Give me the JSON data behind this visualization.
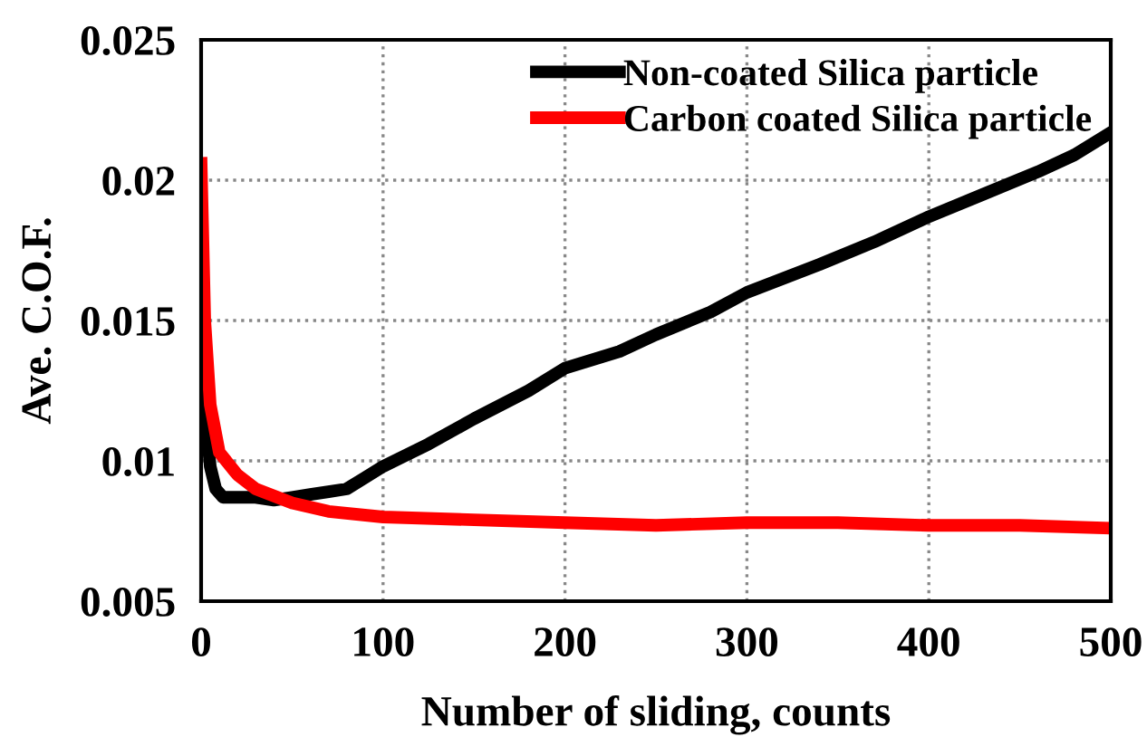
{
  "chart_data": {
    "type": "line",
    "xlabel": "Number of sliding, counts",
    "ylabel": "Ave. C.O.F.",
    "xlim": [
      0,
      500
    ],
    "ylim": [
      0.005,
      0.025
    ],
    "xticks": [
      0,
      100,
      200,
      300,
      400,
      500
    ],
    "yticks": [
      0.005,
      0.01,
      0.015,
      0.02,
      0.025
    ],
    "grid": true,
    "legend": "top right",
    "line_style": "solid",
    "marker": "none",
    "series": [
      {
        "name": "Non-coated Silica particle",
        "color": "#000000",
        "x": [
          0,
          2,
          5,
          8,
          12,
          20,
          30,
          40,
          50,
          60,
          70,
          80,
          90,
          100,
          125,
          150,
          180,
          200,
          230,
          250,
          280,
          300,
          340,
          370,
          400,
          430,
          460,
          480,
          500
        ],
        "values": [
          0.0145,
          0.012,
          0.0098,
          0.009,
          0.0087,
          0.0087,
          0.0087,
          0.0086,
          0.0087,
          0.0088,
          0.0089,
          0.009,
          0.0094,
          0.0098,
          0.0106,
          0.0115,
          0.0125,
          0.0133,
          0.0139,
          0.0145,
          0.0153,
          0.016,
          0.017,
          0.0178,
          0.0187,
          0.0195,
          0.0203,
          0.0209,
          0.0217
        ]
      },
      {
        "name": "Carbon coated Silica particle",
        "color": "#ff0000",
        "x": [
          0,
          2,
          5,
          10,
          20,
          30,
          50,
          70,
          100,
          150,
          200,
          250,
          300,
          350,
          400,
          450,
          500
        ],
        "values": [
          0.0206,
          0.015,
          0.012,
          0.0103,
          0.0095,
          0.009,
          0.0085,
          0.0082,
          0.008,
          0.0079,
          0.0078,
          0.0077,
          0.0078,
          0.0078,
          0.0077,
          0.0077,
          0.0076
        ]
      }
    ]
  }
}
